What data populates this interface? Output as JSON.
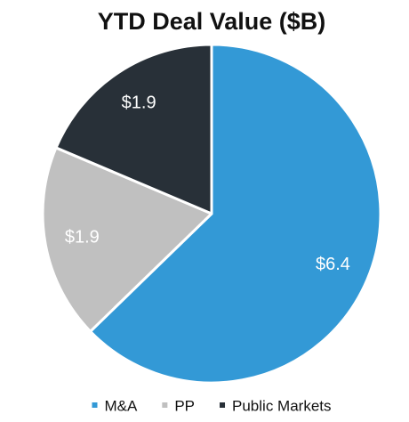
{
  "chart_data": {
    "type": "pie",
    "title": "YTD Deal Value ($B)",
    "categories": [
      "M&A",
      "PP",
      "Public Markets"
    ],
    "values": [
      6.4,
      1.9,
      1.9
    ],
    "value_labels": [
      "$6.4",
      "$1.9",
      "$1.9"
    ],
    "colors": [
      "#3399d6",
      "#c0c0c0",
      "#283038"
    ],
    "legend": "bottom"
  }
}
